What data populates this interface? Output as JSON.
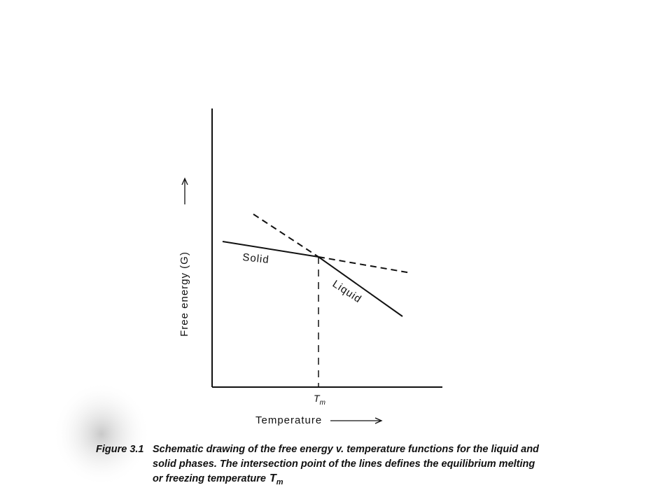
{
  "axes": {
    "y_label": "Free energy (G)",
    "x_label": "Temperature"
  },
  "lines": {
    "solid": "Solid",
    "liquid": "Liquid"
  },
  "tick": {
    "symbol": "T",
    "subscript": "m"
  },
  "caption": {
    "label": "Figure 3.1",
    "lines": [
      "Schematic drawing of the free energy v. temperature functions for the liquid and",
      "solid phases. The intersection point of the lines defines the equilibrium melting",
      "or freezing temperature"
    ],
    "symbol": "T",
    "subscript": "m"
  }
}
